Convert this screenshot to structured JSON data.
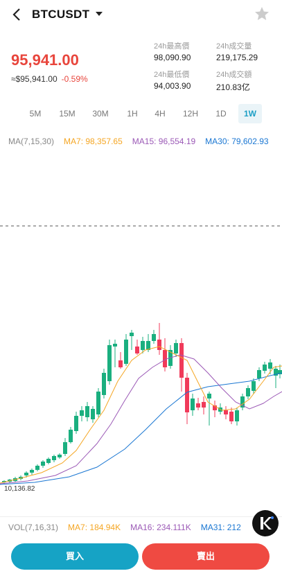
{
  "header": {
    "pair": "BTCUSDT"
  },
  "ticker": {
    "price": "95,941.00",
    "approx": "≈$95,941.00",
    "change": "-0.59%",
    "stats": [
      {
        "label": "24h最高價",
        "value": "98,090.90"
      },
      {
        "label": "24h成交量",
        "value": "219,175.29"
      },
      {
        "label": "24h最低價",
        "value": "94,003.90"
      },
      {
        "label": "24h成交額",
        "value": "210.83亿"
      }
    ]
  },
  "intervals": [
    "5M",
    "15M",
    "30M",
    "1H",
    "4H",
    "12H",
    "1D",
    "1W"
  ],
  "active_interval": "1W",
  "ma": {
    "label": "MA(7,15,30)",
    "ma7": "MA7: 98,357.65",
    "ma15": "MA15: 96,554.19",
    "ma30": "MA30: 79,602.93"
  },
  "chart": {
    "min_label": "10,136.82"
  },
  "chart_data": {
    "type": "candlestick",
    "series": [
      {
        "name": "MA7",
        "color": "#f5a623"
      },
      {
        "name": "MA15",
        "color": "#9b59b6"
      },
      {
        "name": "MA30",
        "color": "#1976d2"
      }
    ],
    "min_price": 10136.82
  },
  "volume": {
    "label": "VOL(7,16,31)",
    "ma7": "MA7: 184.94K",
    "ma16": "MA16: 234.111K",
    "ma31": "MA31: 212"
  },
  "actions": {
    "buy": "買入",
    "sell": "賣出"
  },
  "colors": {
    "up": "#1aaf7f",
    "down": "#f03a5a",
    "accent": "#16a3c5",
    "price": "#e8453c"
  }
}
